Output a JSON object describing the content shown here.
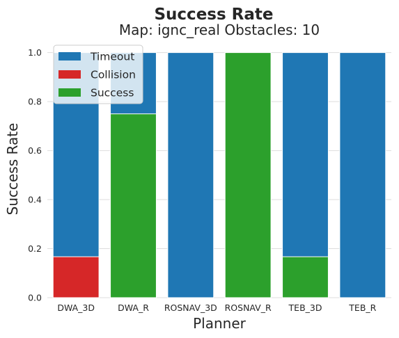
{
  "chart_data": {
    "type": "bar",
    "stacked": false,
    "title": "Success Rate",
    "subtitle": "Map: ignc_real Obstacles: 10",
    "xlabel": "Planner",
    "ylabel": "Success Rate",
    "ylim": [
      0,
      1.05
    ],
    "yticks": [
      "0.0",
      "0.2",
      "0.4",
      "0.6",
      "0.8",
      "1.0"
    ],
    "grid": true,
    "legend_position": "top-left",
    "categories": [
      "DWA_3D",
      "DWA_R",
      "ROSNAV_3D",
      "ROSNAV_R",
      "TEB_3D",
      "TEB_R"
    ],
    "series": [
      {
        "name": "Timeout",
        "color": "#1f77b4",
        "values": [
          1.0,
          1.0,
          1.0,
          1.0,
          1.0,
          1.0
        ]
      },
      {
        "name": "Collision",
        "color": "#d62728",
        "values": [
          0.167,
          0.0,
          0.0,
          0.0,
          0.0,
          0.0
        ]
      },
      {
        "name": "Success",
        "color": "#2ca02c",
        "values": [
          0.0,
          0.75,
          0.0,
          1.0,
          0.167,
          0.0
        ]
      }
    ]
  }
}
